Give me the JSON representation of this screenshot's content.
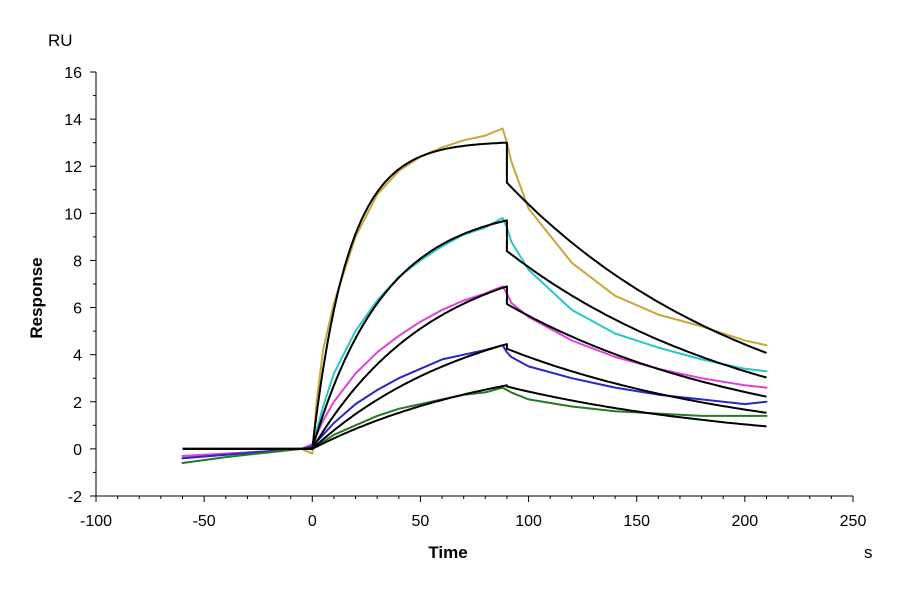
{
  "chart_data": {
    "type": "line",
    "title": "",
    "xlabel": "Time",
    "ylabel": "Response",
    "x_unit": "s",
    "y_unit": "RU",
    "xlim": [
      -100,
      250
    ],
    "ylim": [
      -2,
      16
    ],
    "x_ticks": [
      -100,
      -50,
      0,
      50,
      100,
      150,
      200,
      250
    ],
    "y_ticks": [
      -2,
      0,
      2,
      4,
      6,
      8,
      10,
      12,
      14,
      16
    ],
    "x_tick_labels": [
      "-100",
      "-50",
      "0",
      "50",
      "100",
      "150",
      "200",
      "250"
    ],
    "y_tick_labels": [
      "-2",
      "0",
      "2",
      "4",
      "6",
      "8",
      "10",
      "12",
      "14",
      "16"
    ],
    "grid": false,
    "legend": "none",
    "series": [
      {
        "name": "curve-1",
        "color": "#C8A838",
        "x": [
          -60,
          -40,
          -20,
          -5,
          0,
          2,
          5,
          10,
          20,
          30,
          40,
          50,
          60,
          70,
          80,
          88,
          90,
          92,
          100,
          120,
          140,
          160,
          180,
          200,
          210
        ],
        "y": [
          -0.4,
          -0.25,
          -0.1,
          0,
          -0.2,
          2.0,
          4.2,
          6.2,
          9.0,
          10.8,
          11.8,
          12.4,
          12.8,
          13.1,
          13.3,
          13.6,
          13.0,
          12.2,
          10.2,
          7.9,
          6.5,
          5.7,
          5.2,
          4.6,
          4.4
        ]
      },
      {
        "name": "curve-2",
        "color": "#28C8C8",
        "x": [
          -60,
          -40,
          -20,
          -5,
          0,
          5,
          10,
          20,
          30,
          40,
          50,
          60,
          70,
          80,
          88,
          90,
          92,
          100,
          120,
          140,
          160,
          180,
          200,
          210
        ],
        "y": [
          -0.3,
          -0.2,
          -0.1,
          0,
          0.1,
          1.8,
          3.2,
          5.0,
          6.3,
          7.3,
          8.0,
          8.6,
          9.1,
          9.4,
          9.8,
          9.4,
          8.8,
          7.6,
          5.9,
          4.9,
          4.3,
          3.8,
          3.4,
          3.3
        ]
      },
      {
        "name": "curve-3",
        "color": "#E040E0",
        "x": [
          -60,
          -40,
          -20,
          -5,
          0,
          5,
          10,
          20,
          30,
          40,
          50,
          60,
          70,
          80,
          88,
          90,
          92,
          100,
          120,
          140,
          160,
          180,
          200,
          210
        ],
        "y": [
          -0.3,
          -0.2,
          -0.1,
          0,
          0.2,
          1.2,
          2.0,
          3.2,
          4.1,
          4.8,
          5.4,
          5.9,
          6.3,
          6.6,
          6.9,
          6.6,
          6.2,
          5.6,
          4.6,
          3.9,
          3.4,
          3.0,
          2.7,
          2.6
        ]
      },
      {
        "name": "curve-4",
        "color": "#2828C8",
        "x": [
          -60,
          -40,
          -20,
          -5,
          0,
          5,
          10,
          20,
          30,
          40,
          50,
          60,
          70,
          80,
          88,
          90,
          92,
          100,
          120,
          140,
          160,
          180,
          200,
          210
        ],
        "y": [
          -0.4,
          -0.25,
          -0.1,
          0,
          0.1,
          0.6,
          1.1,
          1.9,
          2.5,
          3.0,
          3.4,
          3.8,
          4.0,
          4.2,
          4.4,
          4.1,
          3.9,
          3.5,
          3.0,
          2.6,
          2.3,
          2.1,
          1.9,
          2.0
        ]
      },
      {
        "name": "curve-5",
        "color": "#287828",
        "x": [
          -60,
          -40,
          -20,
          -5,
          0,
          5,
          10,
          20,
          30,
          40,
          50,
          60,
          70,
          80,
          88,
          90,
          92,
          100,
          120,
          140,
          160,
          180,
          200,
          210
        ],
        "y": [
          -0.6,
          -0.35,
          -0.15,
          0,
          0,
          0.3,
          0.6,
          1.0,
          1.4,
          1.7,
          1.9,
          2.1,
          2.3,
          2.4,
          2.6,
          2.5,
          2.4,
          2.1,
          1.8,
          1.6,
          1.5,
          1.4,
          1.4,
          1.4
        ]
      }
    ],
    "fits": [
      {
        "name": "fit-1",
        "color": "#000000",
        "baseline_x": [
          -60,
          0
        ],
        "assoc_x": [
          0,
          90
        ],
        "max": 13.0,
        "k_on": 0.06,
        "step": 1.7,
        "k_off": 0.0085
      },
      {
        "name": "fit-2",
        "color": "#000000",
        "baseline_x": [
          -60,
          0
        ],
        "assoc_x": [
          0,
          90
        ],
        "max": 9.7,
        "k_on": 0.03,
        "step": 1.3,
        "k_off": 0.0085
      },
      {
        "name": "fit-3",
        "color": "#000000",
        "baseline_x": [
          -60,
          0
        ],
        "assoc_x": [
          0,
          90
        ],
        "max": 6.9,
        "k_on": 0.018,
        "step": 0.75,
        "k_off": 0.0085
      },
      {
        "name": "fit-4",
        "color": "#000000",
        "baseline_x": [
          -60,
          0
        ],
        "assoc_x": [
          0,
          90
        ],
        "max": 4.45,
        "k_on": 0.013,
        "step": 0.2,
        "k_off": 0.0085
      },
      {
        "name": "fit-5",
        "color": "#000000",
        "baseline_x": [
          -60,
          0
        ],
        "assoc_x": [
          0,
          90
        ],
        "max": 2.7,
        "k_on": 0.011,
        "step": 0.05,
        "k_off": 0.0085
      }
    ]
  }
}
